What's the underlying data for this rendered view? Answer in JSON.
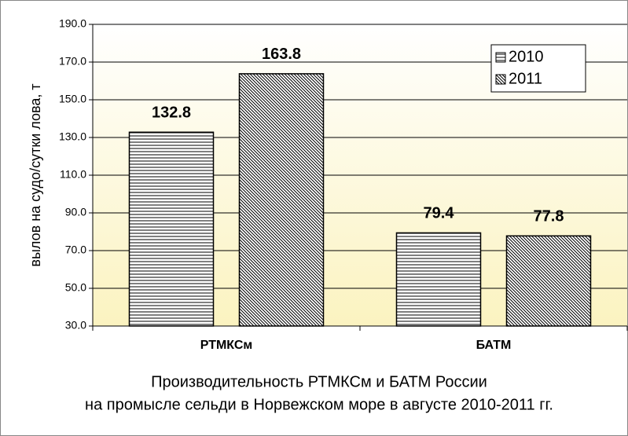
{
  "chart_data": {
    "type": "bar",
    "title": [
      "Производительность РТМКСм и БАТМ России",
      "на промысле сельди в Норвежском море в августе 2010-2011 гг."
    ],
    "y_label": "вылов на судо/сутки лова, т",
    "categories": [
      "РТМКСм",
      "БАТМ"
    ],
    "series": [
      {
        "name": "2010",
        "color": "#000000",
        "pattern": "horizontal",
        "values": [
          132.8,
          79.4
        ]
      },
      {
        "name": "2011",
        "color": "#000000",
        "pattern": "diagonal",
        "values": [
          163.8,
          77.8
        ]
      }
    ],
    "ylim": [
      30,
      190
    ],
    "yticks": [
      {
        "value": 30,
        "label": "30.0"
      },
      {
        "value": 50,
        "label": "50.0"
      },
      {
        "value": 70,
        "label": "70.0"
      },
      {
        "value": 90,
        "label": "90.0"
      },
      {
        "value": 110,
        "label": "110.0"
      },
      {
        "value": 130,
        "label": "130.0"
      },
      {
        "value": 150,
        "label": "150.0"
      },
      {
        "value": 170,
        "label": "170.0"
      },
      {
        "value": 190,
        "label": "190.0"
      }
    ],
    "grid": true,
    "legend": "top-right"
  }
}
